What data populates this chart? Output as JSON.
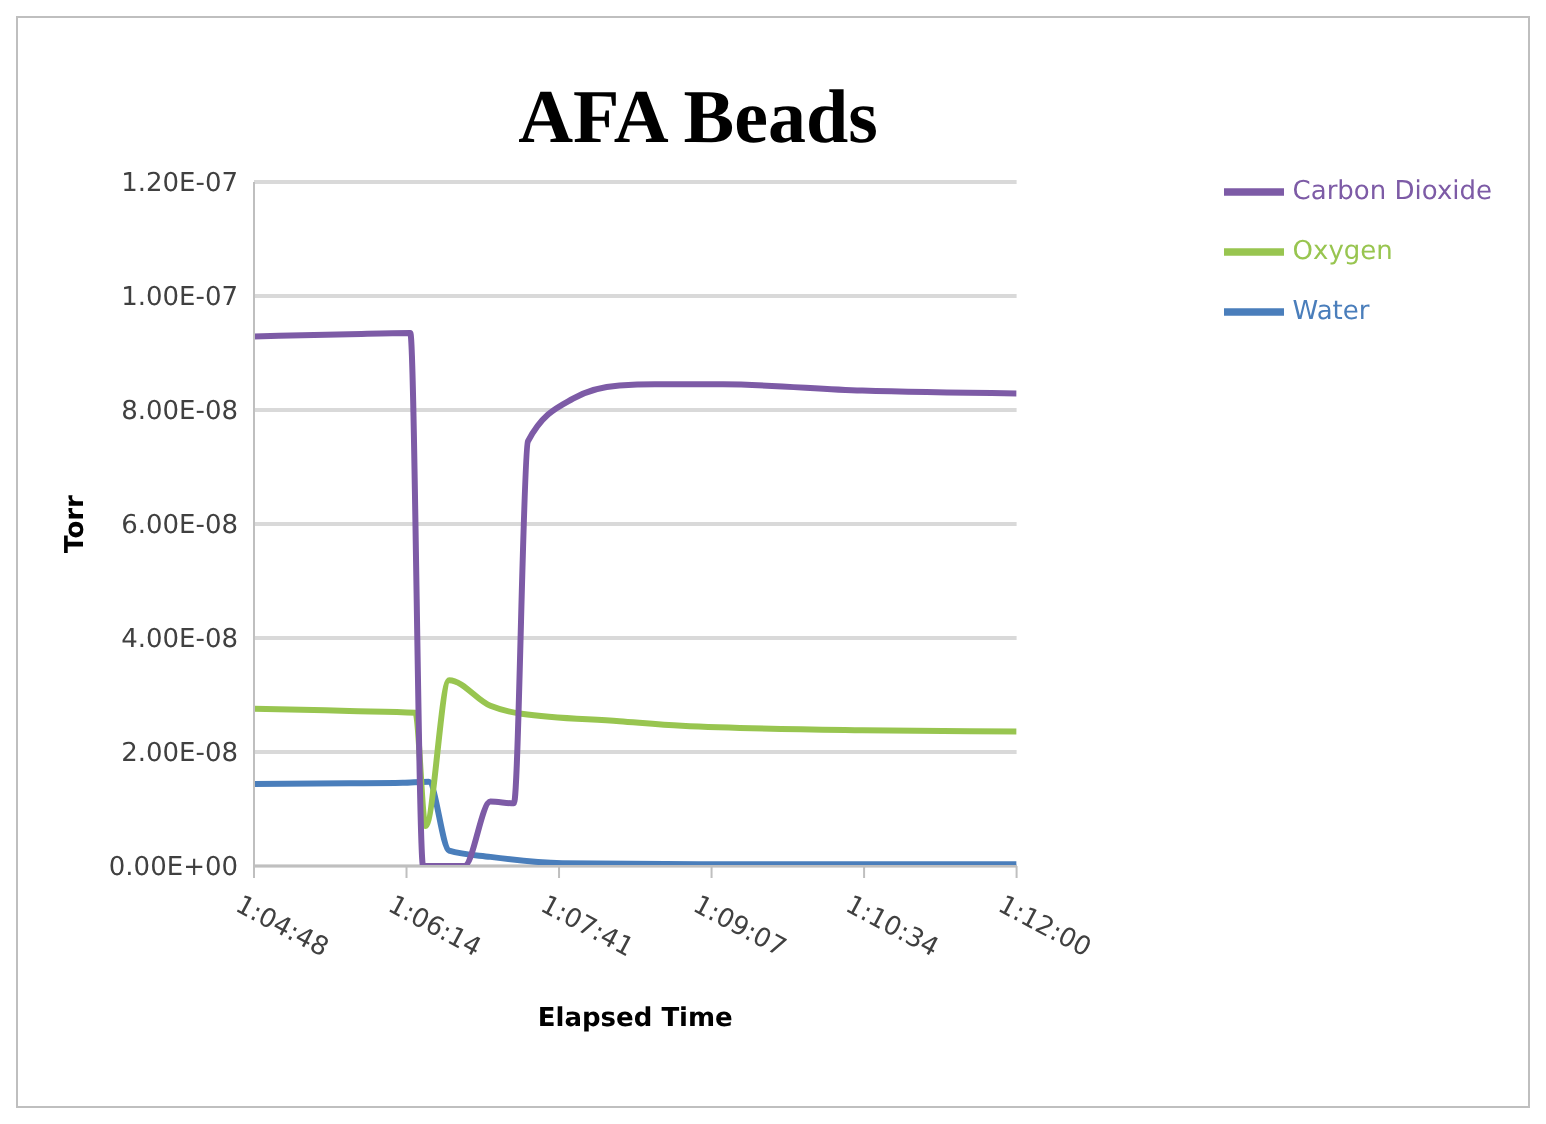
{
  "chart_data": {
    "type": "line",
    "title": "AFA Beads",
    "xlabel": "Elapsed Time",
    "ylabel": "Torr",
    "xlim": [
      1.08,
      1.2
    ],
    "xticks": [
      {
        "value": 1.08,
        "label": "1:04:48"
      },
      {
        "value": 1.104,
        "label": "1:06:14"
      },
      {
        "value": 1.128,
        "label": "1:07:41"
      },
      {
        "value": 1.152,
        "label": "1:09:07"
      },
      {
        "value": 1.176,
        "label": "1:10:34"
      },
      {
        "value": 1.2,
        "label": "1:12:00"
      }
    ],
    "ylim": [
      0,
      1.2e-07
    ],
    "yticks": [
      {
        "value": 0,
        "label": "0.00E+00"
      },
      {
        "value": 2e-08,
        "label": "2.00E-08"
      },
      {
        "value": 4e-08,
        "label": "4.00E-08"
      },
      {
        "value": 6e-08,
        "label": "6.00E-08"
      },
      {
        "value": 8e-08,
        "label": "8.00E-08"
      },
      {
        "value": 1e-07,
        "label": "1.00E-07"
      },
      {
        "value": 1.2e-07,
        "label": "1.20E-07"
      }
    ],
    "grid": "y",
    "legend": "top right",
    "marker": "none",
    "line_style": "solid",
    "series": [
      {
        "name": "Water",
        "color": "#4a7ebb",
        "x": [
          1.08,
          1.095,
          1.1034,
          1.1075,
          1.1107,
          1.1172,
          1.1285,
          1.15,
          1.2
        ],
        "values": [
          1.44e-08,
          1.45e-08,
          1.46e-08,
          1.48e-08,
          2.7e-09,
          1.6e-09,
          5e-10,
          3e-10,
          3e-10
        ]
      },
      {
        "name": "Oxygen",
        "color": "#98c550",
        "x": [
          1.08,
          1.095,
          1.1054,
          1.107,
          1.1107,
          1.1172,
          1.1221,
          1.1375,
          1.1473,
          1.1757,
          1.2
        ],
        "values": [
          2.76e-08,
          2.72e-08,
          2.69e-08,
          7e-09,
          3.26e-08,
          2.81e-08,
          2.67e-08,
          2.54e-08,
          2.46e-08,
          2.38e-08,
          2.36e-08
        ]
      },
      {
        "name": "Carbon Dioxide",
        "color": "#7d5ba6",
        "x": [
          1.08,
          1.095,
          1.1046,
          1.1066,
          1.1131,
          1.1172,
          1.1209,
          1.1231,
          1.1302,
          1.1375,
          1.1431,
          1.1538,
          1.1757,
          1.2
        ],
        "values": [
          9.29e-08,
          9.33e-08,
          9.35e-08,
          0,
          0,
          1.13e-08,
          1.1e-08,
          7.45e-08,
          8.2e-08,
          8.43e-08,
          8.45e-08,
          8.45e-08,
          8.34e-08,
          8.29e-08
        ]
      }
    ]
  }
}
